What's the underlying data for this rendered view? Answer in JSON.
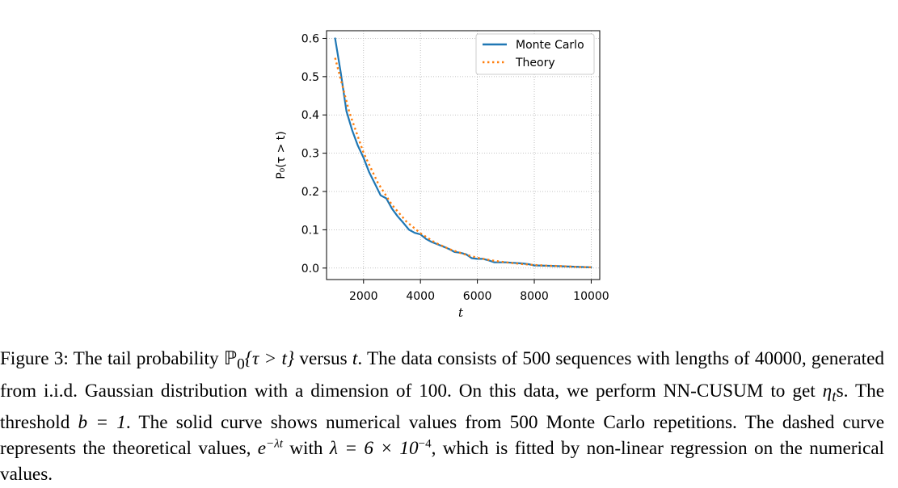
{
  "chart_data": {
    "type": "line",
    "title": "",
    "xlabel": "t",
    "ylabel": "P₀(τ > t)",
    "xlim": [
      700,
      10300
    ],
    "ylim": [
      -0.03,
      0.62
    ],
    "xticks": [
      2000,
      4000,
      6000,
      8000,
      10000
    ],
    "yticks": [
      0.0,
      0.1,
      0.2,
      0.3,
      0.4,
      0.5,
      0.6
    ],
    "grid": true,
    "legend_position": "top-right",
    "series": [
      {
        "name": "Monte Carlo",
        "style": "solid",
        "color": "#1f77b4",
        "x": [
          1000,
          1200,
          1400,
          1600,
          1800,
          2000,
          2200,
          2400,
          2600,
          2800,
          3000,
          3200,
          3400,
          3600,
          3800,
          4000,
          4200,
          4400,
          4600,
          4800,
          5000,
          5200,
          5400,
          5600,
          5800,
          6000,
          6200,
          6400,
          6600,
          6800,
          7000,
          7200,
          7400,
          7600,
          7800,
          8000,
          8400,
          8800,
          9200,
          9600,
          10000
        ],
        "y": [
          0.6,
          0.51,
          0.41,
          0.36,
          0.32,
          0.288,
          0.25,
          0.22,
          0.19,
          0.182,
          0.155,
          0.135,
          0.118,
          0.1,
          0.092,
          0.088,
          0.076,
          0.068,
          0.062,
          0.056,
          0.05,
          0.042,
          0.04,
          0.036,
          0.026,
          0.024,
          0.024,
          0.02,
          0.015,
          0.015,
          0.015,
          0.014,
          0.013,
          0.012,
          0.01,
          0.007,
          0.006,
          0.005,
          0.004,
          0.003,
          0.002
        ]
      },
      {
        "name": "Theory",
        "style": "dotted",
        "color": "#ff7f0e",
        "x": [
          1000,
          1500,
          2000,
          2500,
          3000,
          3500,
          4000,
          4500,
          5000,
          5500,
          6000,
          6500,
          7000,
          7500,
          8000,
          8500,
          9000,
          9500,
          10000
        ],
        "y": [
          0.549,
          0.407,
          0.301,
          0.223,
          0.165,
          0.122,
          0.091,
          0.067,
          0.05,
          0.037,
          0.027,
          0.02,
          0.015,
          0.011,
          0.008,
          0.006,
          0.005,
          0.003,
          0.002
        ]
      }
    ]
  },
  "caption": {
    "label": "Figure 3:",
    "part1": " The tail probability ",
    "prob_symbol": "ℙ",
    "prob_sub": "0",
    "event": "{τ > t}",
    "part2": " versus ",
    "var_t": "t",
    "part3": ". The data consists of 500 sequences with lengths of 40000, generated from i.i.d. Gaussian distribution with a dimension of 100. On this data, we perform NN-CUSUM to get ",
    "eta": "η",
    "eta_sub": "t",
    "part4": "s. The threshold ",
    "b_eq": "b = 1",
    "part5": ". The solid curve shows numerical values from 500 Monte Carlo repetitions. The dashed curve represents the theoretical values, ",
    "exp_base": "e",
    "exp_sup": "−λt",
    "part6": " with ",
    "lambda_eq": "λ = 6 × 10",
    "lambda_sup": "−4",
    "part7": ", which is fitted by non-linear regression on the numerical values."
  }
}
